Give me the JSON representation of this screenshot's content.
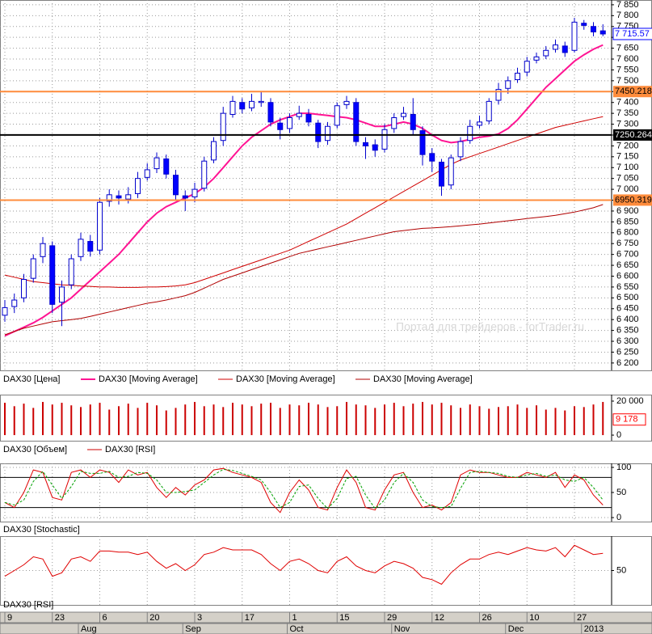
{
  "chart_data": [
    {
      "type": "candlestick",
      "categories": [
        "9",
        null,
        null,
        null,
        null,
        "23",
        null,
        null,
        null,
        null,
        "6",
        null,
        null,
        null,
        null,
        "20",
        null,
        null,
        null,
        null,
        "3",
        null,
        null,
        null,
        null,
        "17",
        null,
        null,
        null,
        null,
        "1",
        null,
        null,
        null,
        null,
        "15",
        null,
        null,
        null,
        null,
        "29",
        null,
        null,
        null,
        null,
        "12",
        null,
        null,
        null,
        null,
        "26",
        null,
        null,
        null,
        null,
        "10",
        null,
        null,
        null,
        null,
        "27",
        null,
        null,
        null
      ],
      "category_groups": [
        null,
        null,
        null,
        null,
        null,
        null,
        null,
        null,
        "Aug",
        null,
        null,
        null,
        null,
        null,
        null,
        null,
        null,
        null,
        null,
        "Sep",
        null,
        null,
        null,
        null,
        null,
        null,
        null,
        null,
        null,
        null,
        "Oct",
        null,
        null,
        null,
        null,
        null,
        null,
        null,
        null,
        null,
        null,
        "Nov",
        null,
        null,
        null,
        null,
        null,
        null,
        null,
        null,
        null,
        null,
        null,
        "Dec",
        null,
        null,
        null,
        null,
        null,
        null,
        null,
        "2013",
        null,
        null
      ],
      "name": "DAX30 [Цена]",
      "up_color": "#ffffff",
      "down_color": "#0000ff",
      "edge_color": "#0000cc",
      "open": [
        6420,
        6460,
        6500,
        6590,
        6690,
        6740,
        6480,
        6560,
        6690,
        6760,
        6720,
        6945,
        6970,
        6955,
        6980,
        7055,
        7095,
        7140,
        7065,
        6970,
        6965,
        7005,
        7135,
        7225,
        7345,
        7400,
        7375,
        7400,
        7400,
        7305,
        7280,
        7335,
        7345,
        7305,
        7225,
        7295,
        7390,
        7400,
        7215,
        7205,
        7185,
        7280,
        7335,
        7345,
        7270,
        7165,
        7125,
        7020,
        7150,
        7225,
        7295,
        7315,
        7410,
        7465,
        7505,
        7540,
        7595,
        7615,
        7645,
        7660,
        7640,
        7765,
        7750,
        7730
      ],
      "high": [
        6490,
        6520,
        6610,
        6700,
        6780,
        6760,
        6580,
        6700,
        6800,
        6790,
        6960,
        7000,
        6995,
        7010,
        7080,
        7120,
        7170,
        7160,
        7090,
        6995,
        7030,
        7150,
        7240,
        7380,
        7430,
        7420,
        7440,
        7450,
        7420,
        7330,
        7350,
        7385,
        7370,
        7320,
        7310,
        7400,
        7430,
        7420,
        7240,
        7230,
        7300,
        7350,
        7380,
        7420,
        7290,
        7190,
        7140,
        7160,
        7240,
        7320,
        7340,
        7420,
        7490,
        7520,
        7560,
        7610,
        7630,
        7660,
        7690,
        7680,
        7790,
        7780,
        7770,
        7760
      ],
      "low": [
        6390,
        6430,
        6480,
        6570,
        6660,
        6430,
        6370,
        6540,
        6670,
        6690,
        6700,
        6920,
        6930,
        6935,
        6960,
        7040,
        7075,
        7050,
        6950,
        6900,
        6940,
        6990,
        7120,
        7200,
        7330,
        7350,
        7360,
        7380,
        7290,
        7230,
        7260,
        7320,
        7290,
        7190,
        7205,
        7280,
        7370,
        7200,
        7140,
        7150,
        7170,
        7260,
        7320,
        7250,
        7110,
        7080,
        6970,
        7000,
        7130,
        7210,
        7280,
        7300,
        7390,
        7440,
        7490,
        7520,
        7580,
        7600,
        7630,
        7610,
        7630,
        7735,
        7705,
        7705
      ],
      "close": [
        6455,
        6490,
        6585,
        6680,
        6750,
        6470,
        6550,
        6680,
        6770,
        6715,
        6940,
        6975,
        6960,
        6975,
        7050,
        7090,
        7145,
        7070,
        6975,
        6960,
        7000,
        7130,
        7220,
        7350,
        7405,
        7370,
        7405,
        7405,
        7310,
        7275,
        7330,
        7350,
        7310,
        7220,
        7290,
        7385,
        7405,
        7220,
        7200,
        7180,
        7275,
        7330,
        7350,
        7275,
        7160,
        7130,
        7015,
        7145,
        7220,
        7290,
        7310,
        7405,
        7460,
        7500,
        7535,
        7590,
        7610,
        7640,
        7665,
        7630,
        7770,
        7755,
        7725,
        7715.57
      ],
      "series": [
        {
          "name": "DAX30 [Moving Average]",
          "color": "#ff1493",
          "width": 2,
          "values": [
            6325,
            6345,
            6365,
            6385,
            6410,
            6440,
            6470,
            6500,
            6540,
            6580,
            6620,
            6660,
            6700,
            6750,
            6800,
            6850,
            6890,
            6920,
            6940,
            6960,
            6980,
            7010,
            7050,
            7100,
            7150,
            7200,
            7240,
            7270,
            7300,
            7320,
            7335,
            7350,
            7350,
            7345,
            7340,
            7335,
            7330,
            7320,
            7305,
            7290,
            7290,
            7300,
            7310,
            7300,
            7280,
            7250,
            7225,
            7215,
            7220,
            7230,
            7240,
            7245,
            7255,
            7280,
            7320,
            7370,
            7420,
            7470,
            7510,
            7550,
            7590,
            7620,
            7645,
            7665
          ]
        },
        {
          "name": "DAX30 [Moving Average]",
          "color": "#d00000",
          "width": 1,
          "values": [
            6605,
            6595,
            6585,
            6575,
            6570,
            6565,
            6560,
            6558,
            6555,
            6553,
            6550,
            6550,
            6548,
            6548,
            6548,
            6550,
            6550,
            6552,
            6555,
            6560,
            6570,
            6585,
            6600,
            6615,
            6630,
            6645,
            6660,
            6675,
            6690,
            6705,
            6720,
            6740,
            6760,
            6780,
            6800,
            6820,
            6840,
            6865,
            6890,
            6915,
            6940,
            6965,
            6990,
            7015,
            7040,
            7065,
            7090,
            7115,
            7135,
            7150,
            7165,
            7180,
            7195,
            7210,
            7225,
            7240,
            7255,
            7270,
            7285,
            7295,
            7305,
            7315,
            7325,
            7335
          ]
        },
        {
          "name": "DAX30 [Moving Average]",
          "color": "#b00000",
          "width": 1,
          "values": [
            6330,
            6345,
            6360,
            6370,
            6380,
            6390,
            6395,
            6400,
            6405,
            6415,
            6425,
            6435,
            6445,
            6455,
            6465,
            6475,
            6482,
            6490,
            6500,
            6510,
            6525,
            6545,
            6565,
            6585,
            6600,
            6615,
            6630,
            6645,
            6660,
            6675,
            6690,
            6705,
            6715,
            6725,
            6735,
            6745,
            6755,
            6765,
            6775,
            6785,
            6795,
            6805,
            6810,
            6815,
            6820,
            6822,
            6825,
            6828,
            6832,
            6836,
            6840,
            6845,
            6850,
            6855,
            6860,
            6865,
            6870,
            6875,
            6880,
            6888,
            6895,
            6905,
            6915,
            6930
          ]
        }
      ],
      "ylim": [
        6166,
        7872
      ],
      "yticks": [
        {
          "value": 7850,
          "label": "7 850"
        },
        {
          "value": 7800,
          "label": "7 800"
        },
        {
          "value": 7750,
          "label": "7 750"
        },
        {
          "value": 7700,
          "label": "7 700"
        },
        {
          "value": 7650,
          "label": "7 650"
        },
        {
          "value": 7600,
          "label": "7 600"
        },
        {
          "value": 7550,
          "label": "7 550"
        },
        {
          "value": 7500,
          "label": "7 500"
        },
        {
          "value": 7450,
          "label": "7 450"
        },
        {
          "value": 7400,
          "label": "7 400"
        },
        {
          "value": 7350,
          "label": "7 350"
        },
        {
          "value": 7300,
          "label": "7 300"
        },
        {
          "value": 7250,
          "label": "7 250"
        },
        {
          "value": 7200,
          "label": "7 200"
        },
        {
          "value": 7150,
          "label": "7 150"
        },
        {
          "value": 7100,
          "label": "7 100"
        },
        {
          "value": 7050,
          "label": "7 050"
        },
        {
          "value": 7000,
          "label": "7 000"
        },
        {
          "value": 6950,
          "label": "6 950"
        },
        {
          "value": 6900,
          "label": "6 900"
        },
        {
          "value": 6850,
          "label": "6 850"
        },
        {
          "value": 6800,
          "label": "6 800"
        },
        {
          "value": 6750,
          "label": "6 750"
        },
        {
          "value": 6700,
          "label": "6 700"
        },
        {
          "value": 6650,
          "label": "6 650"
        },
        {
          "value": 6600,
          "label": "6 600"
        },
        {
          "value": 6550,
          "label": "6 550"
        },
        {
          "value": 6500,
          "label": "6 500"
        },
        {
          "value": 6450,
          "label": "6 450"
        },
        {
          "value": 6400,
          "label": "6 400"
        },
        {
          "value": 6350,
          "label": "6 350"
        },
        {
          "value": 6300,
          "label": "6 300"
        },
        {
          "value": 6250,
          "label": "6 250"
        },
        {
          "value": 6200,
          "label": "6 200"
        }
      ],
      "grid": true,
      "hlines": [
        {
          "value": 7450.218,
          "label": "7450.218",
          "color": "#ff8c3c"
        },
        {
          "value": 7250.264,
          "label": "7250.264",
          "color": "#000000"
        },
        {
          "value": 6950.319,
          "label": "6950.319",
          "color": "#ff8c3c"
        }
      ],
      "current": {
        "value": 7715.57,
        "label": "7 715.57",
        "color": "#0000ff"
      },
      "watermark": "Портал для трейдеров - forTrader.ru"
    },
    {
      "type": "bar",
      "series": [
        {
          "name": "DAX30 [Объем]",
          "color": "#cc0000",
          "values": [
            19000,
            17000,
            18500,
            16000,
            19500,
            18000,
            19000,
            17500,
            16500,
            18000,
            19000,
            15000,
            17000,
            18500,
            16000,
            19000,
            17500,
            14500,
            16000,
            18000,
            19500,
            17000,
            18000,
            16500,
            19000,
            18000,
            17000,
            18500,
            19000,
            16000,
            18000,
            17500,
            19000,
            18000,
            16500,
            17000,
            19500,
            18000,
            17500,
            16000,
            18000,
            19000,
            17000,
            18500,
            19500,
            18000,
            19000,
            17500,
            16000,
            18000,
            17000,
            15500,
            16500,
            17000,
            18000,
            16000,
            17500,
            15000,
            16000,
            14500,
            17000,
            16500,
            18000,
            19500
          ]
        }
      ],
      "legend_extra": [
        {
          "name": "DAX30 [RSI]",
          "color": "#cc0000"
        }
      ],
      "ylim": [
        -3300,
        23800
      ],
      "yticks": [
        {
          "value": 20000,
          "label": "20 000"
        },
        0
      ],
      "marker": {
        "value": 9178,
        "label": "9 178",
        "color": "#ff0000"
      }
    },
    {
      "type": "line",
      "title": "DAX30 [Stochastic]",
      "series": [
        {
          "color": "#e00000",
          "values": [
            30,
            20,
            50,
            95,
            90,
            40,
            35,
            90,
            95,
            80,
            95,
            90,
            70,
            95,
            85,
            90,
            60,
            40,
            60,
            45,
            65,
            75,
            95,
            98,
            90,
            85,
            80,
            70,
            30,
            10,
            50,
            75,
            55,
            20,
            15,
            60,
            95,
            70,
            20,
            15,
            55,
            85,
            90,
            50,
            20,
            25,
            15,
            30,
            85,
            95,
            90,
            90,
            85,
            80,
            80,
            90,
            85,
            80,
            90,
            60,
            85,
            75,
            45,
            25
          ]
        },
        {
          "color": "#00a000",
          "dash": true,
          "values": [
            30,
            25,
            35,
            72,
            92,
            65,
            38,
            62,
            92,
            88,
            88,
            92,
            80,
            82,
            90,
            88,
            75,
            50,
            50,
            52,
            55,
            70,
            85,
            96,
            94,
            88,
            82,
            75,
            50,
            20,
            30,
            62,
            65,
            38,
            18,
            38,
            78,
            82,
            45,
            18,
            35,
            70,
            88,
            70,
            35,
            22,
            20,
            22,
            58,
            90,
            92,
            90,
            88,
            82,
            80,
            85,
            88,
            82,
            85,
            75,
            72,
            80,
            60,
            35
          ]
        }
      ],
      "levels": [
        80,
        20
      ],
      "ylim": [
        -8,
        108
      ],
      "yticks": [
        100,
        50,
        0
      ],
      "grid": true
    },
    {
      "type": "line",
      "title": "DAX30 [RSI]",
      "series": [
        {
          "color": "#e00000",
          "values": [
            45,
            50,
            55,
            62,
            60,
            45,
            48,
            60,
            62,
            58,
            67,
            67,
            66,
            66,
            64,
            66,
            58,
            52,
            56,
            50,
            55,
            64,
            66,
            70,
            68,
            68,
            68,
            64,
            56,
            50,
            58,
            60,
            56,
            50,
            48,
            58,
            62,
            54,
            50,
            48,
            54,
            58,
            56,
            52,
            44,
            42,
            38,
            48,
            55,
            60,
            60,
            64,
            66,
            64,
            67,
            70,
            68,
            67,
            70,
            62,
            72,
            68,
            64,
            65
          ]
        }
      ],
      "ylim": [
        20,
        80
      ],
      "yticks": [
        50
      ],
      "grid": true
    }
  ]
}
